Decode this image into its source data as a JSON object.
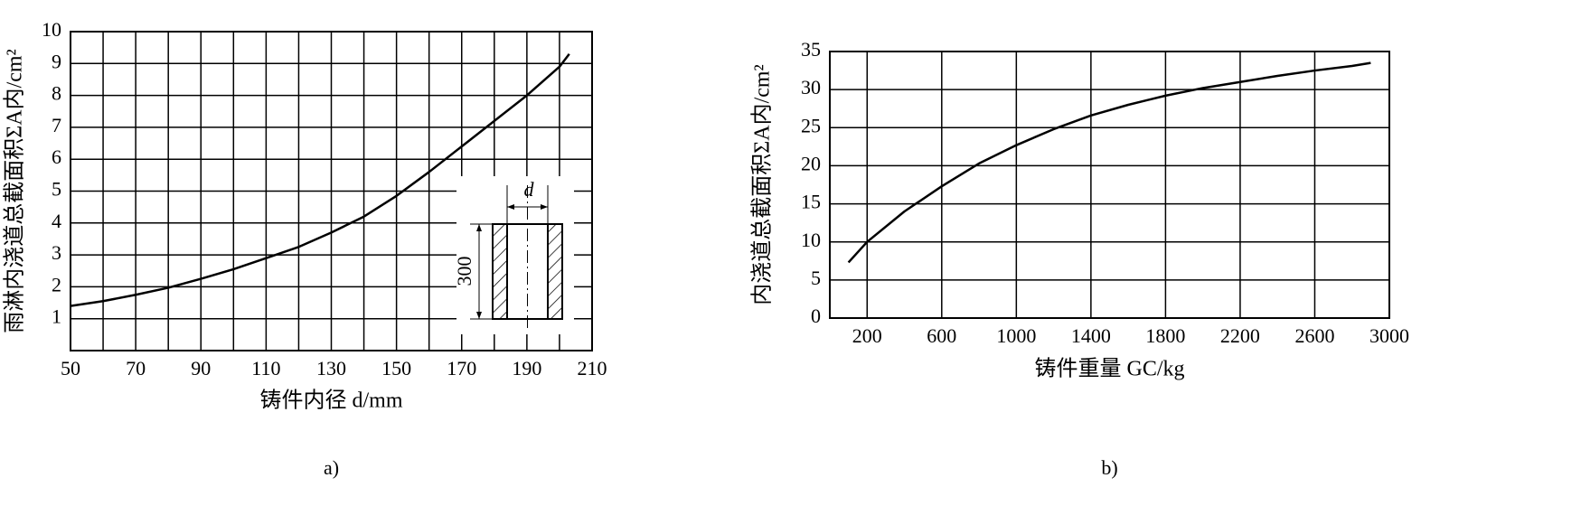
{
  "chart_data": [
    {
      "type": "line",
      "title": "a)",
      "xlabel": "铸件内径 d/mm",
      "ylabel": "雨淋内浇道总截面积ΣA内/cm²",
      "x": [
        50,
        60,
        70,
        80,
        90,
        100,
        110,
        120,
        130,
        140,
        150,
        160,
        170,
        180,
        190,
        200,
        203
      ],
      "series": [
        {
          "color": "#000000",
          "values": [
            1.4,
            1.55,
            1.75,
            1.97,
            2.25,
            2.55,
            2.9,
            3.25,
            3.7,
            4.2,
            4.85,
            5.6,
            6.4,
            7.2,
            8.0,
            8.9,
            9.3
          ]
        }
      ],
      "xlim": [
        50,
        210
      ],
      "xticks": [
        50,
        70,
        90,
        110,
        130,
        150,
        170,
        190,
        210
      ],
      "xticks_minor": [
        60,
        80,
        100,
        120,
        140,
        160,
        180,
        200
      ],
      "ylim": [
        0,
        10
      ],
      "yticks": [
        1,
        2,
        3,
        4,
        5,
        6,
        7,
        8,
        9,
        10
      ],
      "grid": true,
      "annotations": [
        "d",
        "300"
      ]
    },
    {
      "type": "line",
      "title": "b)",
      "xlabel": "铸件重量 GC/kg",
      "ylabel": "内浇道总截面积ΣA内/cm²",
      "x": [
        100,
        200,
        400,
        600,
        800,
        1000,
        1200,
        1400,
        1600,
        1800,
        2000,
        2200,
        2400,
        2600,
        2800,
        2900
      ],
      "series": [
        {
          "color": "#000000",
          "values": [
            7.3,
            10,
            14,
            17.3,
            20.3,
            22.7,
            24.8,
            26.6,
            28,
            29.2,
            30.2,
            31,
            31.8,
            32.5,
            33.1,
            33.5
          ]
        }
      ],
      "xlim": [
        0,
        3000
      ],
      "xticks": [
        200,
        600,
        1000,
        1400,
        1800,
        2200,
        2600,
        3000
      ],
      "ylim": [
        0,
        35
      ],
      "yticks": [
        0,
        5,
        10,
        15,
        20,
        25,
        30,
        35
      ],
      "grid": true
    }
  ]
}
